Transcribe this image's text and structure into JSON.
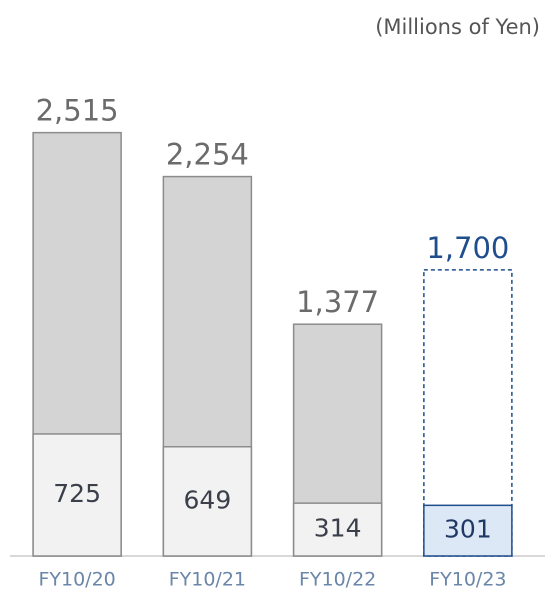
{
  "chart_data": {
    "type": "bar",
    "unit_label": "(Millions of Yen)",
    "categories": [
      "FY10/20",
      "FY10/21",
      "FY10/22",
      "FY10/23"
    ],
    "series": [
      {
        "values": [
          2515,
          2254,
          1377,
          1700
        ],
        "value_labels": [
          "2,515",
          "2,254",
          "1,377",
          "1,700"
        ],
        "colors": [
          "#d4d4d4",
          "#d4d4d4",
          "#d4d4d4",
          "#ffffff"
        ],
        "stroke": [
          "#8c8c8c",
          "#8c8c8c",
          "#8c8c8c",
          "#1f4e8c"
        ],
        "label_colors": [
          "#6b6b6b",
          "#6b6b6b",
          "#6b6b6b",
          "#1f4e8c"
        ]
      },
      {
        "values": [
          725,
          649,
          314,
          301
        ],
        "colors": [
          "#f2f2f2",
          "#f2f2f2",
          "#f2f2f2",
          "#dce8f5"
        ],
        "stroke": [
          "#8c8c8c",
          "#8c8c8c",
          "#8c8c8c",
          "#1f4e8c"
        ],
        "label_colors": [
          "#3a3f4a",
          "#3a3f4a",
          "#3a3f4a",
          "#1f3864"
        ]
      }
    ],
    "dashed": [
      false,
      false,
      false,
      true
    ],
    "ylim": [
      0,
      3000
    ]
  }
}
